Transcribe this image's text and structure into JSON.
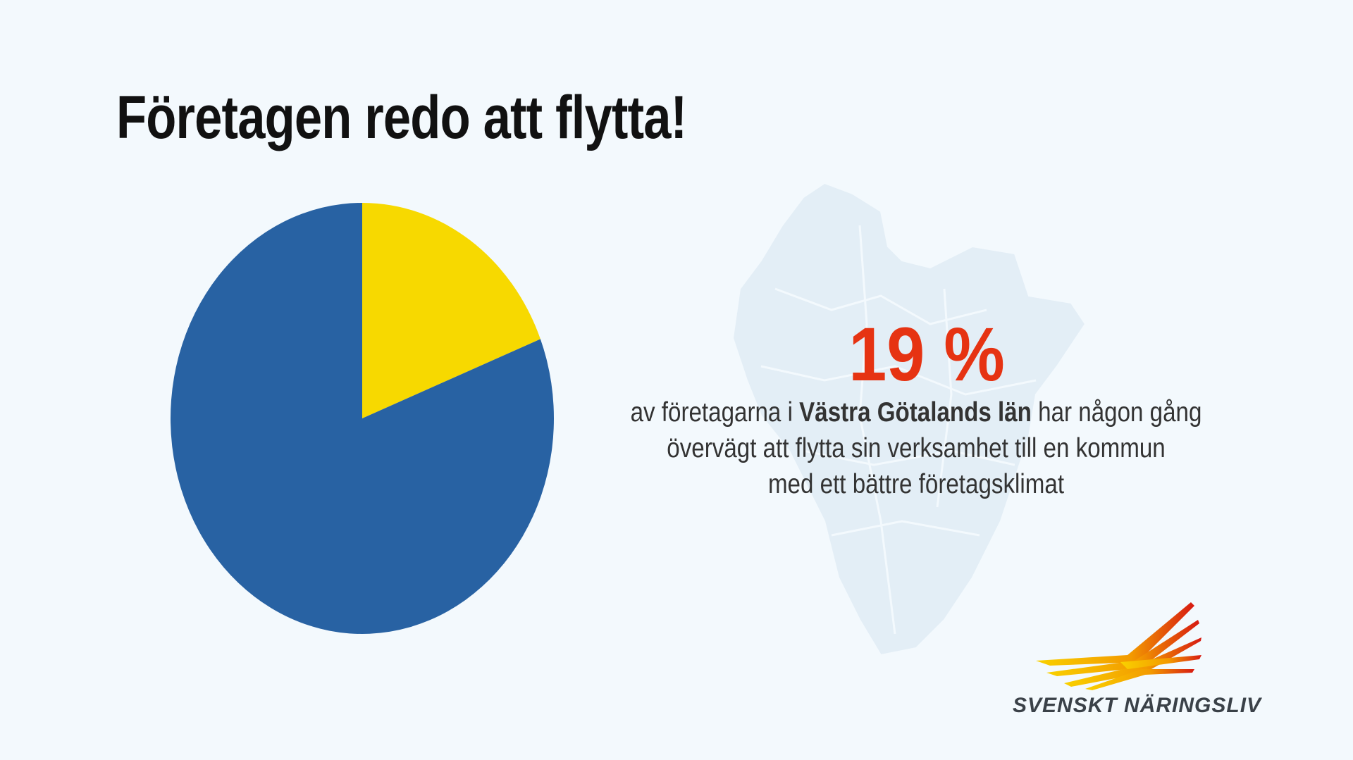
{
  "title": "Företagen redo att flytta!",
  "chart_data": {
    "type": "pie",
    "title": "Företagen redo att flytta!",
    "values": [
      19,
      81
    ],
    "colors": [
      "#f7d900",
      "#2862a3"
    ],
    "start": "top, clockwise"
  },
  "stat": {
    "value": "19 %",
    "color": "#e63312",
    "text_before": "av företagarna i ",
    "text_bold": "Västra Götalands län",
    "text_after": " har någon gång",
    "line2": "övervägt att flytta sin verksamhet till en kommun",
    "line3": "med ett bättre företagsklimat"
  },
  "logo": {
    "text": "SVENSKT NÄRINGSLIV"
  }
}
